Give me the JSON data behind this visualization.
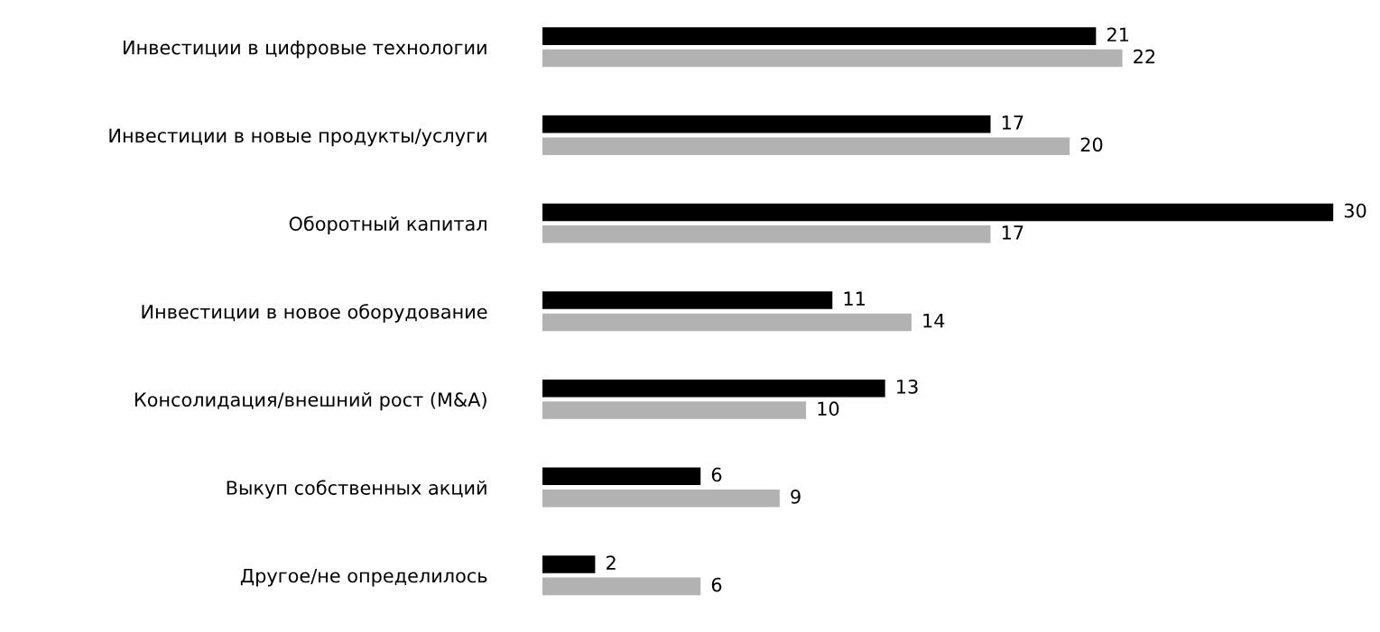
{
  "chart_data": {
    "type": "bar",
    "orientation": "horizontal",
    "categories": [
      "Инвестиции в цифровые технологии",
      "Инвестиции в новые продукты/услуги",
      "Оборотный капитал",
      "Инвестиции в новое оборудование",
      "Консолидация/внешний рост (M&A)",
      "Выкуп собственных акций",
      "Другое/не определилось"
    ],
    "series": [
      {
        "color": "#000000",
        "values": [
          21,
          17,
          30,
          11,
          13,
          6,
          2
        ]
      },
      {
        "color": "#b2b2b2",
        "values": [
          22,
          20,
          17,
          14,
          10,
          9,
          6
        ]
      }
    ],
    "data_labels": true,
    "tick_labels": "y"
  }
}
